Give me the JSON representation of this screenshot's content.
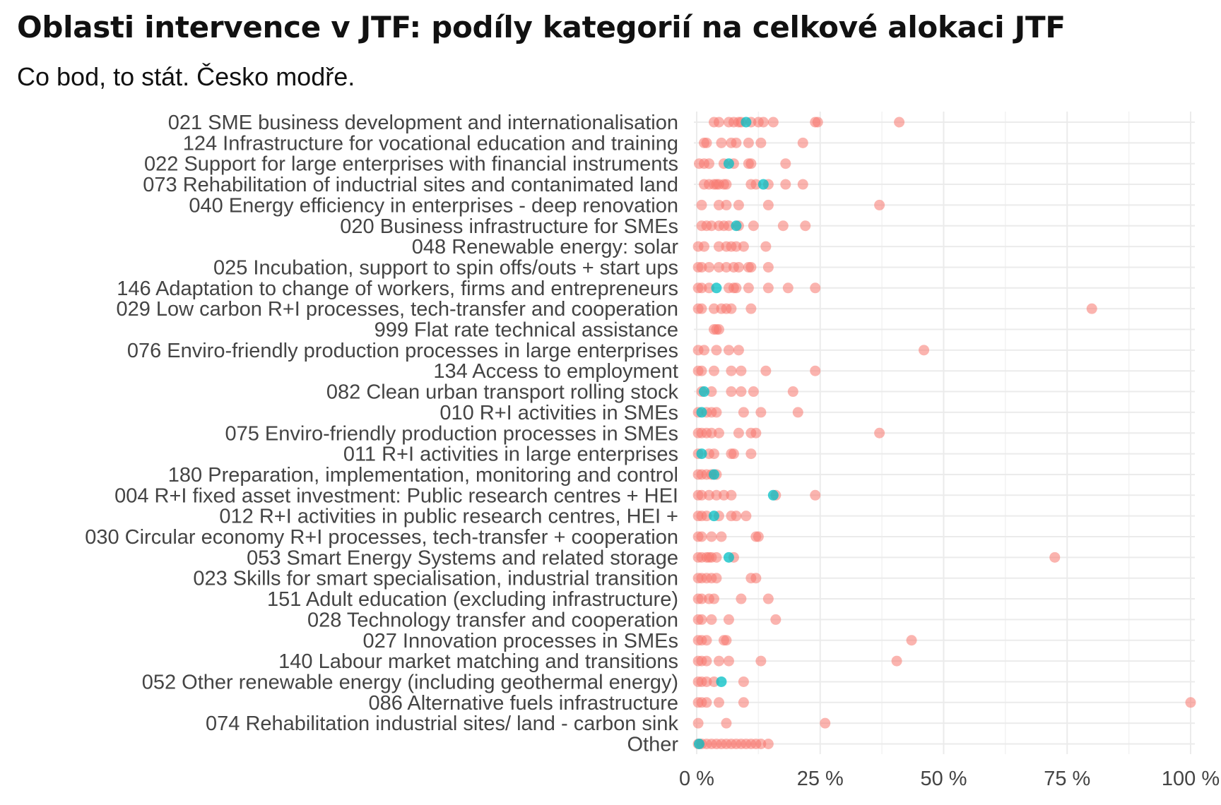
{
  "chart_data": {
    "type": "scatter",
    "title": "Oblasti intervence v JTF: podíly kategorií na celkové alokaci JTF",
    "subtitle": "Co bod, to stát. Česko modře.",
    "xlabel": "",
    "ylabel": "",
    "xlim": [
      0,
      100
    ],
    "x_ticks": [
      0,
      25,
      50,
      75,
      100
    ],
    "x_tick_labels": [
      "0 %",
      "25 %",
      "50 %",
      "75 %",
      "100 %"
    ],
    "grid": true,
    "legend": "none",
    "colors": {
      "other_states": "#F8766D",
      "czechia": "#00BFC4"
    },
    "categories": [
      {
        "label": "021 SME business development and internationalisation",
        "values": [
          3.5,
          4.5,
          6.5,
          7.5,
          8.5,
          9,
          11,
          12.5,
          13.5,
          15.5,
          24,
          24.5,
          41
        ],
        "cz": 10
      },
      {
        "label": "124 Infrastructure for vocational education and training",
        "values": [
          1.5,
          2,
          5,
          7,
          8,
          10.5,
          13,
          21.5
        ],
        "cz": null
      },
      {
        "label": "022 Support for large enterprises with financial instruments",
        "values": [
          0.5,
          1.5,
          2.5,
          5.5,
          7.5,
          10.5,
          11,
          18
        ],
        "cz": 6.5
      },
      {
        "label": "073 Rehabilitation of inductrial sites and contanimated land",
        "values": [
          1.5,
          2.5,
          3.5,
          4,
          4.5,
          5.5,
          6,
          11,
          12,
          14.5,
          18,
          21.5
        ],
        "cz": 13.5
      },
      {
        "label": "040 Energy efficiency in enterprises - deep renovation",
        "values": [
          1,
          4.5,
          6,
          8.5,
          14.5,
          37
        ],
        "cz": null
      },
      {
        "label": "020 Business infrastructure for SMEs",
        "values": [
          1,
          2,
          3,
          4.5,
          5.5,
          6.5,
          8.5,
          11.5,
          17.5,
          22
        ],
        "cz": 8
      },
      {
        "label": "048 Renewable energy: solar",
        "values": [
          0.3,
          1.5,
          4.5,
          6,
          7,
          8,
          9.5,
          14
        ],
        "cz": null
      },
      {
        "label": "025 Incubation, support to spin offs/outs + start ups",
        "values": [
          0.3,
          1,
          2.5,
          4.5,
          6,
          7.5,
          8.5,
          10.5,
          11,
          14.5
        ],
        "cz": null
      },
      {
        "label": "146 Adaptation to change of workers, firms and entrepreneurs",
        "values": [
          0.3,
          1,
          2.5,
          6.5,
          7.5,
          8,
          10.5,
          14.5,
          18.5,
          24
        ],
        "cz": 4
      },
      {
        "label": "029 Low carbon R+I processes, tech-transfer and cooperation",
        "values": [
          0.3,
          1,
          3.5,
          5,
          6,
          7,
          11,
          80
        ],
        "cz": null
      },
      {
        "label": "999 Flat rate technical assistance",
        "values": [
          3.5,
          4,
          4.5
        ],
        "cz": null
      },
      {
        "label": "076 Enviro-friendly production processes in large enterprises",
        "values": [
          0.3,
          1.5,
          4,
          6.5,
          8.5,
          46
        ],
        "cz": null
      },
      {
        "label": "134 Access to employment",
        "values": [
          0.3,
          1,
          3.5,
          7,
          9,
          14,
          24
        ],
        "cz": null
      },
      {
        "label": "082 Clean urban transport rolling stock",
        "values": [
          1,
          3,
          7,
          9,
          11.5,
          19.5
        ],
        "cz": 1.5
      },
      {
        "label": "010 R+I activities in SMEs",
        "values": [
          0.3,
          2,
          3,
          4,
          9.5,
          13,
          20.5
        ],
        "cz": 1
      },
      {
        "label": "075 Enviro-friendly production processes in SMEs",
        "values": [
          0.3,
          1,
          2,
          3,
          4.5,
          8.5,
          11,
          12,
          37
        ],
        "cz": null
      },
      {
        "label": "011 R+I activities in large enterprises",
        "values": [
          0.3,
          2.5,
          3.5,
          7,
          7.5,
          11
        ],
        "cz": 1
      },
      {
        "label": "180 Preparation, implementation, monitoring and control",
        "values": [
          0.3,
          1,
          2,
          3,
          4
        ],
        "cz": 3.5
      },
      {
        "label": "004 R+I fixed asset investment: Public research centres + HEI",
        "values": [
          0.3,
          1,
          2.5,
          4,
          5.5,
          7,
          16,
          24
        ],
        "cz": 15.5
      },
      {
        "label": "012 R+I activities in public research centres, HEI +",
        "values": [
          0.3,
          1,
          2,
          4.5,
          7,
          8,
          10
        ],
        "cz": 3.5
      },
      {
        "label": "030 Circular economy R+I processes, tech-transfer + cooperation",
        "values": [
          0.3,
          1,
          3,
          5,
          12,
          12.5
        ],
        "cz": null
      },
      {
        "label": "053 Smart Energy Systems and related storage",
        "values": [
          0.3,
          1,
          2,
          2.5,
          3,
          4,
          7.5,
          72.5
        ],
        "cz": 6.5
      },
      {
        "label": "023 Skills for smart specialisation, industrial transition",
        "values": [
          0.3,
          1,
          2,
          3,
          4,
          11,
          12
        ],
        "cz": null
      },
      {
        "label": "151 Adult education (excluding infrastructure)",
        "values": [
          0.3,
          1,
          2.5,
          3.5,
          9,
          14.5
        ],
        "cz": null
      },
      {
        "label": "028 Technology transfer and cooperation",
        "values": [
          0.3,
          1,
          3,
          6.5,
          16
        ],
        "cz": null
      },
      {
        "label": "027 Innovation processes in SMEs",
        "values": [
          0.3,
          1,
          2,
          5.5,
          6,
          43.5
        ],
        "cz": null
      },
      {
        "label": "140 Labour market matching and transitions",
        "values": [
          0.3,
          1,
          2,
          4.5,
          6.5,
          13,
          40.5
        ],
        "cz": null
      },
      {
        "label": "052 Other renewable energy (including geothermal energy)",
        "values": [
          0.3,
          1,
          2,
          3.5,
          9.5
        ],
        "cz": 5
      },
      {
        "label": "086 Alternative fuels infrastructure",
        "values": [
          0.3,
          1,
          2,
          4.5,
          9.5,
          100
        ],
        "cz": null
      },
      {
        "label": "074 Rehabilitation industrial sites/ land - carbon sink",
        "values": [
          0.3,
          6,
          26
        ],
        "cz": null
      },
      {
        "label": "Other",
        "values": [
          0.3,
          1,
          2,
          3,
          4,
          5,
          6,
          7,
          8,
          9,
          10,
          11,
          12,
          13,
          14.5
        ],
        "cz": 0.5
      }
    ]
  }
}
